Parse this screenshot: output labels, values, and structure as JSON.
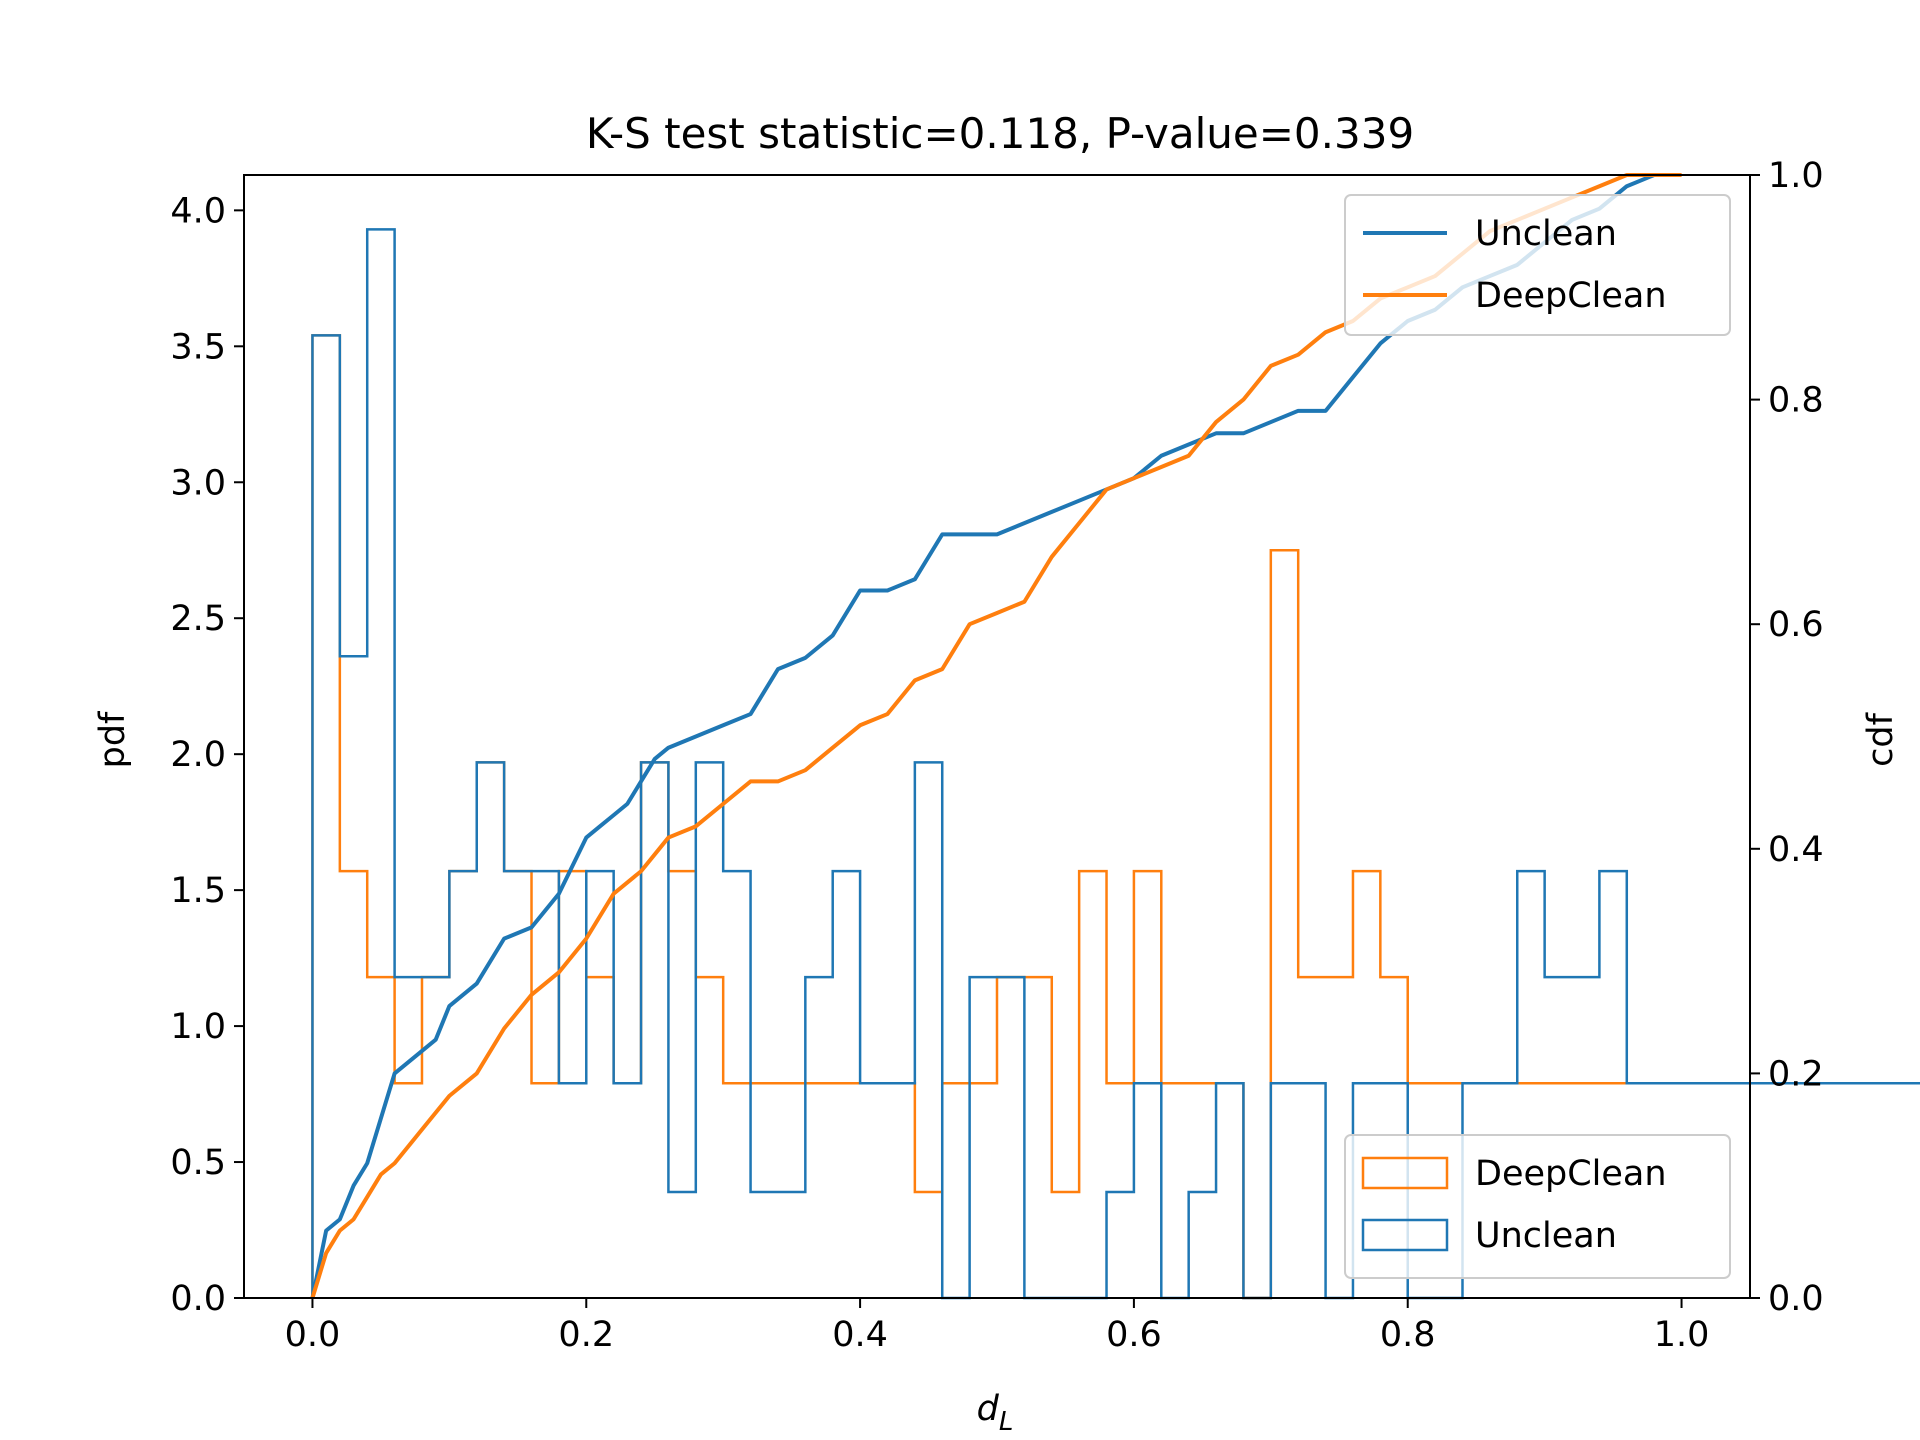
{
  "chart_data": {
    "type": "histogram+cdf",
    "title": "K-S test statistic=0.118, P-value=0.339",
    "xlabel": "d_L",
    "xlabel_main": "d",
    "xlabel_sub": "L",
    "ylabel_left": "pdf",
    "ylabel_right": "cdf",
    "xlim": [
      -0.05,
      1.05
    ],
    "ylim_left": [
      0,
      4.13
    ],
    "ylim_right": [
      0,
      1.0
    ],
    "x_ticks": [
      "0.0",
      "0.2",
      "0.4",
      "0.6",
      "0.8",
      "1.0"
    ],
    "y_ticks_left": [
      "0.0",
      "0.5",
      "1.0",
      "1.5",
      "2.0",
      "2.5",
      "3.0",
      "3.5",
      "4.0"
    ],
    "y_ticks_right": [
      "0.0",
      "0.2",
      "0.4",
      "0.6",
      "0.8",
      "1.0"
    ],
    "bin_edges_start": 0.0,
    "bin_width": 0.02,
    "histograms": [
      {
        "name": "Unclean",
        "color": "#1f77b4",
        "values": [
          3.54,
          2.36,
          3.93,
          1.18,
          1.18,
          1.57,
          1.97,
          1.57,
          1.57,
          0.79,
          1.57,
          0.79,
          1.97,
          0.39,
          1.97,
          1.57,
          0.39,
          0.39,
          1.18,
          1.57,
          0.79,
          0.79,
          1.97,
          0,
          1.18,
          1.18,
          0,
          0,
          0,
          0.39,
          0.79,
          0,
          0.39,
          0.79,
          0,
          0.79,
          0.79,
          0,
          0.79,
          0.79,
          0,
          0,
          0.79,
          0.79,
          1.57,
          1.18,
          1.18,
          1.57,
          0.79,
          0.79,
          0.79,
          0.79,
          0.79,
          0.79,
          0.79,
          0.79,
          0.79,
          0.79,
          0.79,
          0.79,
          0.79,
          0.79,
          0.79,
          0.79,
          0.79,
          0.79,
          0.79,
          0.79,
          0.79,
          0.79,
          0.79,
          0.79,
          0.79,
          0.79,
          0.79,
          0.79,
          0.79,
          0.79,
          0.79,
          0.79,
          0.79,
          0.79,
          0.79,
          0.79,
          0.79,
          0.79,
          0.79,
          0.79,
          0.79,
          0.79,
          0.79,
          0.79,
          0.79,
          0.79,
          0.79,
          0.79,
          0.79,
          0.79,
          0.79,
          0.79
        ]
      },
      {
        "name": "DeepClean",
        "color": "#ff7f0e",
        "values": [
          3.54,
          1.57,
          1.18,
          0.79,
          1.18,
          1.57,
          1.97,
          1.57,
          0.79,
          1.57,
          1.18,
          0.79,
          1.97,
          1.57,
          1.18,
          0.79,
          0.79,
          0.79,
          0.79,
          0.79,
          0.79,
          0.79,
          0.39,
          0.79,
          0.79,
          1.18,
          1.18,
          0.39,
          1.57,
          0.79,
          1.57,
          0.79,
          0.79,
          0.79,
          0,
          2.75,
          1.18,
          1.18,
          1.57,
          1.18,
          0.79,
          0.79,
          0.79,
          0.79,
          0.79,
          0.79,
          0.79,
          0.79,
          0.79,
          0.79,
          0.79,
          0.79,
          0.79,
          0.79,
          0.79,
          0.79,
          0.79,
          0.79,
          0.79,
          0.79,
          0.79,
          0.79,
          0.79,
          0.79,
          0.79,
          0.79,
          0.79,
          0.79,
          0.79,
          0.79,
          0.79,
          0.79,
          0.79,
          0.79,
          0.79,
          0.79,
          0.79,
          0.79,
          0.79,
          0.79,
          0.79,
          0.79,
          0.79,
          0.79,
          0.79,
          0.79,
          0.79,
          0.79,
          0.79,
          0.79,
          0.79,
          0.79,
          0.79,
          0.79,
          0.79,
          0.79,
          0.79,
          0.79,
          0.79,
          0.79
        ]
      }
    ],
    "cdf_series": [
      {
        "name": "Unclean",
        "color": "#1f77b4",
        "x": [
          0.0,
          0.01,
          0.02,
          0.03,
          0.04,
          0.05,
          0.06,
          0.07,
          0.08,
          0.09,
          0.1,
          0.12,
          0.14,
          0.16,
          0.18,
          0.2,
          0.21,
          0.22,
          0.23,
          0.24,
          0.25,
          0.26,
          0.28,
          0.3,
          0.32,
          0.34,
          0.36,
          0.38,
          0.4,
          0.42,
          0.44,
          0.46,
          0.5,
          0.52,
          0.54,
          0.56,
          0.58,
          0.6,
          0.62,
          0.64,
          0.66,
          0.68,
          0.7,
          0.72,
          0.74,
          0.76,
          0.78,
          0.8,
          0.82,
          0.84,
          0.86,
          0.88,
          0.9,
          0.92,
          0.94,
          0.96,
          0.98,
          1.0
        ],
        "y": [
          0.0,
          0.06,
          0.07,
          0.1,
          0.12,
          0.16,
          0.2,
          0.21,
          0.22,
          0.23,
          0.26,
          0.28,
          0.32,
          0.33,
          0.36,
          0.41,
          0.42,
          0.43,
          0.44,
          0.46,
          0.48,
          0.49,
          0.5,
          0.51,
          0.52,
          0.56,
          0.57,
          0.59,
          0.63,
          0.63,
          0.64,
          0.68,
          0.68,
          0.69,
          0.7,
          0.71,
          0.72,
          0.73,
          0.75,
          0.76,
          0.77,
          0.77,
          0.78,
          0.79,
          0.79,
          0.82,
          0.85,
          0.87,
          0.88,
          0.9,
          0.91,
          0.92,
          0.94,
          0.96,
          0.97,
          0.99,
          1.0,
          1.0
        ]
      },
      {
        "name": "DeepClean",
        "color": "#ff7f0e",
        "x": [
          0.0,
          0.01,
          0.02,
          0.03,
          0.04,
          0.05,
          0.06,
          0.08,
          0.1,
          0.12,
          0.14,
          0.16,
          0.18,
          0.2,
          0.22,
          0.24,
          0.26,
          0.28,
          0.3,
          0.32,
          0.34,
          0.36,
          0.38,
          0.4,
          0.42,
          0.44,
          0.46,
          0.48,
          0.5,
          0.52,
          0.54,
          0.56,
          0.58,
          0.6,
          0.62,
          0.64,
          0.66,
          0.68,
          0.7,
          0.72,
          0.74,
          0.76,
          0.78,
          0.8,
          0.82,
          0.84,
          0.86,
          0.88,
          0.9,
          0.92,
          0.94,
          0.96,
          0.98,
          1.0
        ],
        "y": [
          0.0,
          0.04,
          0.06,
          0.07,
          0.09,
          0.11,
          0.12,
          0.15,
          0.18,
          0.2,
          0.24,
          0.27,
          0.29,
          0.32,
          0.36,
          0.38,
          0.41,
          0.42,
          0.44,
          0.46,
          0.46,
          0.47,
          0.49,
          0.51,
          0.52,
          0.55,
          0.56,
          0.6,
          0.61,
          0.62,
          0.66,
          0.69,
          0.72,
          0.73,
          0.74,
          0.75,
          0.78,
          0.8,
          0.83,
          0.84,
          0.86,
          0.87,
          0.89,
          0.9,
          0.91,
          0.93,
          0.95,
          0.96,
          0.97,
          0.98,
          0.99,
          1.0,
          1.0,
          1.0
        ]
      }
    ],
    "legend_cdf": {
      "placement": "top-right",
      "entries": [
        {
          "label": "Unclean",
          "color": "#1f77b4"
        },
        {
          "label": "DeepClean",
          "color": "#ff7f0e"
        }
      ]
    },
    "legend_hist": {
      "placement": "bottom-right",
      "entries": [
        {
          "label": "DeepClean",
          "color": "#ff7f0e"
        },
        {
          "label": "Unclean",
          "color": "#1f77b4"
        }
      ]
    },
    "grid": false
  }
}
